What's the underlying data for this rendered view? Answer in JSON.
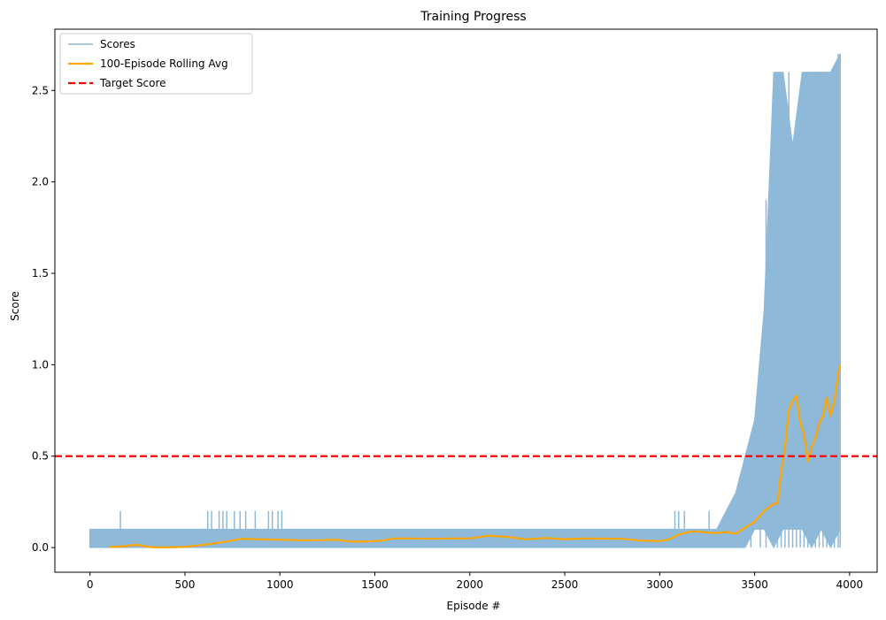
{
  "chart_data": {
    "type": "line",
    "title": "Training Progress",
    "xlabel": "Episode #",
    "ylabel": "Score",
    "xlim": [
      -185,
      4145
    ],
    "ylim": [
      -0.135,
      2.835
    ],
    "x_ticks": [
      0,
      500,
      1000,
      1500,
      2000,
      2500,
      3000,
      3500,
      4000
    ],
    "y_ticks": [
      0.0,
      0.5,
      1.0,
      1.5,
      2.0,
      2.5
    ],
    "x_tick_labels": [
      "0",
      "500",
      "1000",
      "1500",
      "2000",
      "2500",
      "3000",
      "3500",
      "4000"
    ],
    "y_tick_labels": [
      "0.0",
      "0.5",
      "1.0",
      "1.5",
      "2.0",
      "2.5"
    ],
    "grid": false,
    "legend_position": "top-left",
    "colors": {
      "scores": "#8fb9d8",
      "rolling_avg": "#ffa500",
      "target": "#ff0000"
    },
    "series": [
      {
        "name": "Scores",
        "style": "solid",
        "envelope": [
          {
            "x": 0,
            "low": 0.0,
            "high": 0.1
          },
          {
            "x": 500,
            "low": 0.0,
            "high": 0.1
          },
          {
            "x": 1000,
            "low": 0.0,
            "high": 0.1
          },
          {
            "x": 1500,
            "low": 0.0,
            "high": 0.1
          },
          {
            "x": 2000,
            "low": 0.0,
            "high": 0.1
          },
          {
            "x": 2500,
            "low": 0.0,
            "high": 0.1
          },
          {
            "x": 3000,
            "low": 0.0,
            "high": 0.1
          },
          {
            "x": 3050,
            "low": 0.0,
            "high": 0.1
          },
          {
            "x": 3100,
            "low": 0.0,
            "high": 0.1
          },
          {
            "x": 3200,
            "low": 0.0,
            "high": 0.1
          },
          {
            "x": 3300,
            "low": 0.0,
            "high": 0.1
          },
          {
            "x": 3400,
            "low": 0.0,
            "high": 0.3
          },
          {
            "x": 3450,
            "low": 0.0,
            "high": 0.5
          },
          {
            "x": 3500,
            "low": 0.1,
            "high": 0.7
          },
          {
            "x": 3550,
            "low": 0.1,
            "high": 1.3
          },
          {
            "x": 3600,
            "low": 0.0,
            "high": 2.6
          },
          {
            "x": 3650,
            "low": 0.1,
            "high": 2.6
          },
          {
            "x": 3700,
            "low": 0.1,
            "high": 2.2
          },
          {
            "x": 3750,
            "low": 0.1,
            "high": 2.6
          },
          {
            "x": 3800,
            "low": 0.0,
            "high": 2.6
          },
          {
            "x": 3850,
            "low": 0.1,
            "high": 2.6
          },
          {
            "x": 3900,
            "low": 0.0,
            "high": 2.6
          },
          {
            "x": 3950,
            "low": 0.1,
            "high": 2.7
          }
        ],
        "spikes": [
          {
            "x": 0,
            "y": 0.1
          },
          {
            "x": 40,
            "y": 0.1
          },
          {
            "x": 80,
            "y": 0.1
          },
          {
            "x": 110,
            "y": 0.1
          },
          {
            "x": 160,
            "y": 0.2
          },
          {
            "x": 620,
            "y": 0.2
          },
          {
            "x": 640,
            "y": 0.2
          },
          {
            "x": 680,
            "y": 0.2
          },
          {
            "x": 700,
            "y": 0.2
          },
          {
            "x": 720,
            "y": 0.2
          },
          {
            "x": 760,
            "y": 0.2
          },
          {
            "x": 790,
            "y": 0.2
          },
          {
            "x": 820,
            "y": 0.2
          },
          {
            "x": 870,
            "y": 0.2
          },
          {
            "x": 940,
            "y": 0.2
          },
          {
            "x": 960,
            "y": 0.2
          },
          {
            "x": 990,
            "y": 0.2
          },
          {
            "x": 1010,
            "y": 0.2
          },
          {
            "x": 3080,
            "y": 0.2
          },
          {
            "x": 3100,
            "y": 0.2
          },
          {
            "x": 3130,
            "y": 0.2
          },
          {
            "x": 3260,
            "y": 0.2
          },
          {
            "x": 3420,
            "y": 0.3
          },
          {
            "x": 3480,
            "y": 0.6
          },
          {
            "x": 3530,
            "y": 0.7
          },
          {
            "x": 3560,
            "y": 1.9
          },
          {
            "x": 3600,
            "y": 1.3
          },
          {
            "x": 3620,
            "y": 2.6
          },
          {
            "x": 3640,
            "y": 2.6
          },
          {
            "x": 3660,
            "y": 2.0
          },
          {
            "x": 3680,
            "y": 2.6
          },
          {
            "x": 3700,
            "y": 1.2
          },
          {
            "x": 3720,
            "y": 2.1
          },
          {
            "x": 3740,
            "y": 0.9
          },
          {
            "x": 3760,
            "y": 1.9
          },
          {
            "x": 3780,
            "y": 1.6
          },
          {
            "x": 3800,
            "y": 2.6
          },
          {
            "x": 3820,
            "y": 2.0
          },
          {
            "x": 3840,
            "y": 2.6
          },
          {
            "x": 3860,
            "y": 2.6
          },
          {
            "x": 3880,
            "y": 2.6
          },
          {
            "x": 3900,
            "y": 2.6
          },
          {
            "x": 3920,
            "y": 2.6
          },
          {
            "x": 3940,
            "y": 2.7
          },
          {
            "x": 3950,
            "y": 2.7
          }
        ]
      },
      {
        "name": "100-Episode Rolling Avg",
        "style": "solid",
        "x": [
          100,
          150,
          200,
          250,
          300,
          350,
          400,
          500,
          600,
          700,
          800,
          900,
          1000,
          1100,
          1200,
          1300,
          1350,
          1400,
          1500,
          1550,
          1600,
          1700,
          1800,
          1900,
          2000,
          2100,
          2200,
          2300,
          2400,
          2500,
          2600,
          2700,
          2800,
          2900,
          3000,
          3050,
          3100,
          3150,
          3200,
          3250,
          3300,
          3350,
          3400,
          3450,
          3500,
          3550,
          3600,
          3620,
          3640,
          3660,
          3680,
          3700,
          3720,
          3740,
          3760,
          3780,
          3800,
          3820,
          3840,
          3860,
          3880,
          3900,
          3920,
          3940,
          3950
        ],
        "values": [
          0.004,
          0.005,
          0.01,
          0.015,
          0.005,
          0.001,
          0.001,
          0.004,
          0.015,
          0.03,
          0.048,
          0.045,
          0.043,
          0.04,
          0.04,
          0.043,
          0.035,
          0.032,
          0.035,
          0.04,
          0.05,
          0.05,
          0.048,
          0.05,
          0.05,
          0.065,
          0.058,
          0.045,
          0.052,
          0.046,
          0.05,
          0.049,
          0.048,
          0.038,
          0.035,
          0.045,
          0.07,
          0.085,
          0.088,
          0.082,
          0.08,
          0.085,
          0.075,
          0.11,
          0.14,
          0.2,
          0.24,
          0.24,
          0.42,
          0.55,
          0.75,
          0.8,
          0.83,
          0.68,
          0.62,
          0.47,
          0.55,
          0.6,
          0.68,
          0.72,
          0.82,
          0.72,
          0.8,
          0.95,
          1.0
        ]
      },
      {
        "name": "Target Score",
        "style": "dashed",
        "y": 0.5
      }
    ]
  }
}
